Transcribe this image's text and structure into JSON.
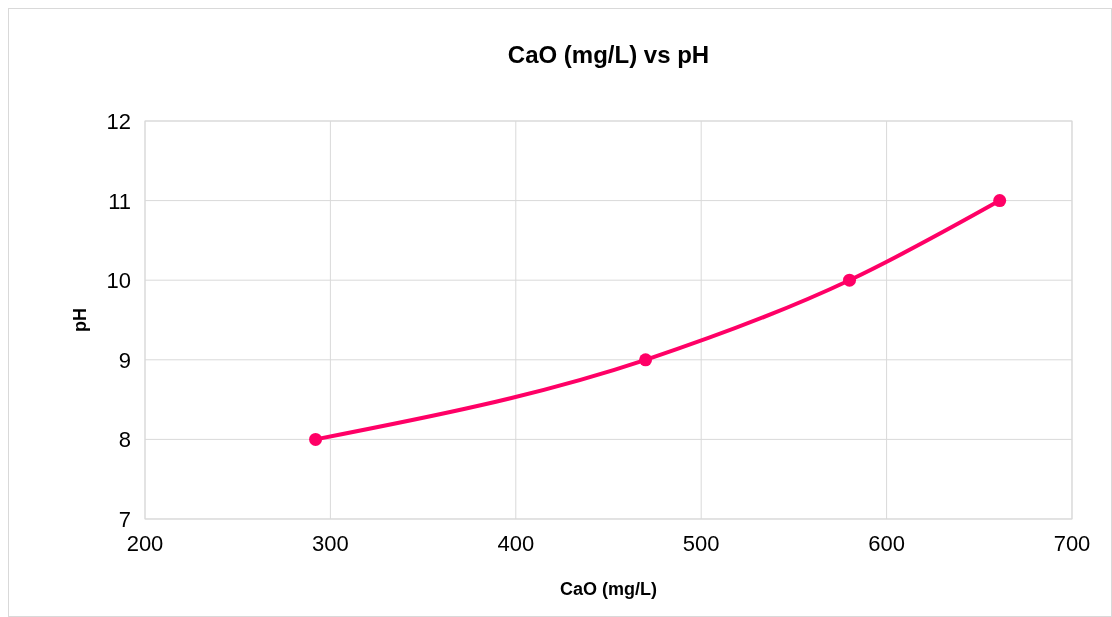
{
  "chart_data": {
    "type": "line",
    "title": "CaO (mg/L) vs pH",
    "xlabel": "CaO (mg/L)",
    "ylabel": "pH",
    "x": [
      292,
      470,
      580,
      661
    ],
    "series": [
      {
        "color": "#ff0066",
        "values": [
          8,
          9,
          10,
          11
        ]
      }
    ],
    "xlim": [
      200,
      700
    ],
    "xticks": [
      200,
      300,
      400,
      500,
      600,
      700
    ],
    "ylim": [
      7,
      12
    ],
    "yticks": [
      7,
      8,
      9,
      10,
      11,
      12
    ],
    "grid": true,
    "marker": "circle",
    "line_style": "solid"
  }
}
